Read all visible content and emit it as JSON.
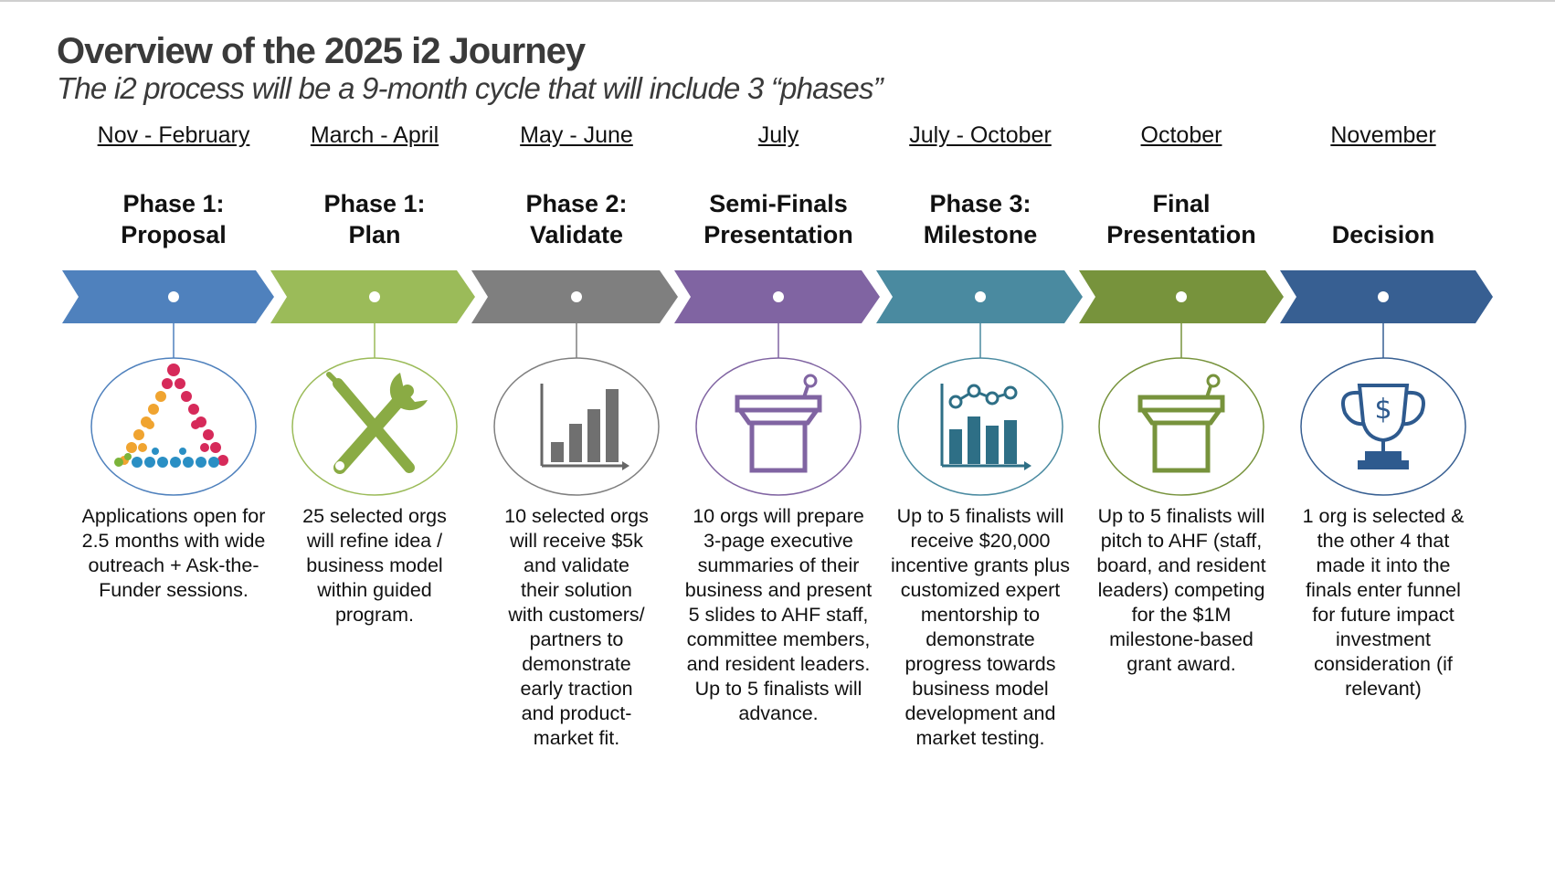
{
  "title": "Overview of the 2025 i2 Journey",
  "subtitle": "The i2 process will be a 9-month cycle that will include 3 “phases”",
  "stages": [
    {
      "date": "Nov - February",
      "phase": "Phase 1:\nProposal",
      "color": "#4f81bd",
      "icon": "pyramid-icon",
      "description": "Applications open for\n2.5 months with wide\noutreach + Ask-the-\nFunder sessions."
    },
    {
      "date": "March - April",
      "phase": "Phase 1:\nPlan",
      "color": "#9bbb59",
      "icon": "tools-icon",
      "description": "25 selected orgs\nwill refine idea /\nbusiness model\nwithin guided\nprogram."
    },
    {
      "date": "May - June",
      "phase": "Phase 2:\nValidate",
      "color": "#7f7f7f",
      "icon": "bar-chart-icon",
      "description": "10 selected orgs\nwill receive $5k\nand validate\ntheir solution\nwith customers/\npartners to\ndemonstrate\nearly traction\nand product-\nmarket fit."
    },
    {
      "date": "July",
      "phase": "Semi-Finals\nPresentation",
      "color": "#8064a2",
      "icon": "podium-icon",
      "description": "10 orgs will prepare\n3-page executive\nsummaries of their\nbusiness and present\n5 slides to AHF staff,\ncommittee members,\nand resident leaders.\nUp to 5 finalists will\nadvance."
    },
    {
      "date": "July - October",
      "phase": "Phase 3:\nMilestone",
      "color": "#4a8aa0",
      "icon": "growth-chart-icon",
      "description": "Up to 5 finalists will\nreceive $20,000\nincentive grants plus\ncustomized expert\nmentorship to\ndemonstrate\nprogress towards\nbusiness model\ndevelopment and\nmarket testing."
    },
    {
      "date": "October",
      "phase": "Final\nPresentation",
      "color": "#77933c",
      "icon": "podium-icon",
      "description": "Up to 5 finalists will\npitch to AHF (staff,\nboard, and resident\nleaders) competing\nfor the $1M\nmilestone-based\ngrant award."
    },
    {
      "date": "November",
      "phase": "Decision",
      "color": "#375f92",
      "icon": "trophy-icon",
      "description": "1 org is selected &\nthe other 4 that\nmade it into the\nfinals enter funnel\nfor future impact\ninvestment\nconsideration (if\nrelevant)"
    }
  ]
}
